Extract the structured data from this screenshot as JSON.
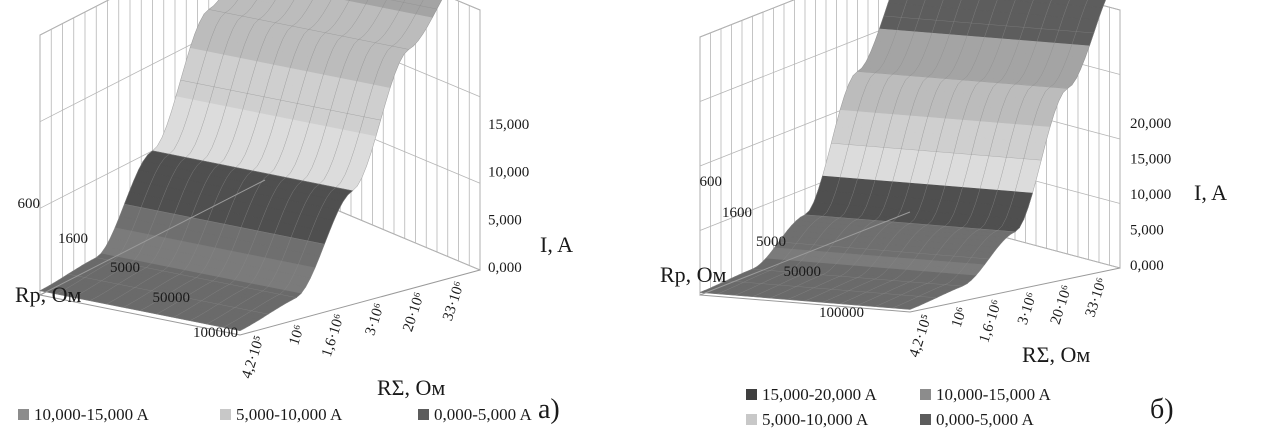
{
  "chart_data": [
    {
      "panel": "a)",
      "type": "surface",
      "ylabel": "Rp, Ом",
      "xlabel": "RΣ, Ом",
      "zlabel": "I, A",
      "rp_ticks": [
        "600",
        "1600",
        "5000",
        "50000",
        "100000"
      ],
      "rs_ticks": [
        "4,2·10⁵",
        "10⁶",
        "1,6·10⁶",
        "3·10⁶",
        "20·10⁶",
        "33·10⁶"
      ],
      "z_ticks": [
        "0,000",
        "5,000",
        "10,000",
        "15,000"
      ],
      "zlim": [
        0,
        15000
      ],
      "grid": true,
      "legend_position": "bottom",
      "legend": [
        {
          "label": "10,000-15,000 A",
          "color": "#8c8c8c"
        },
        {
          "label": "5,000-10,000 A",
          "color": "#c8c8c8"
        },
        {
          "label": "0,000-5,000 A",
          "color": "#5c5c5c"
        }
      ],
      "rp_profile": [
        14500,
        11500,
        5000,
        500,
        250
      ]
    },
    {
      "panel": "б)",
      "type": "surface",
      "ylabel": "Rp, Ом",
      "xlabel": "RΣ, Ом",
      "zlabel": "I, A",
      "rp_ticks": [
        "600",
        "1600",
        "5000",
        "50000",
        "100000"
      ],
      "rs_ticks": [
        "4,2·10⁵",
        "10⁶",
        "1,6·10⁶",
        "3·10⁶",
        "20·10⁶",
        "33·10⁶"
      ],
      "z_ticks": [
        "0,000",
        "5,000",
        "10,000",
        "15,000",
        "20,000"
      ],
      "zlim": [
        0,
        20000
      ],
      "grid": true,
      "legend_position": "bottom",
      "legend": [
        {
          "label": "15,000-20,000 A",
          "color": "#3f3f3f"
        },
        {
          "label": "10,000-15,000 A",
          "color": "#8c8c8c"
        },
        {
          "label": "5,000-10,000 A",
          "color": "#c8c8c8"
        },
        {
          "label": "0,000-5,000 A",
          "color": "#5c5c5c"
        }
      ],
      "rp_profile": [
        19500,
        12500,
        3000,
        400,
        200
      ]
    }
  ]
}
